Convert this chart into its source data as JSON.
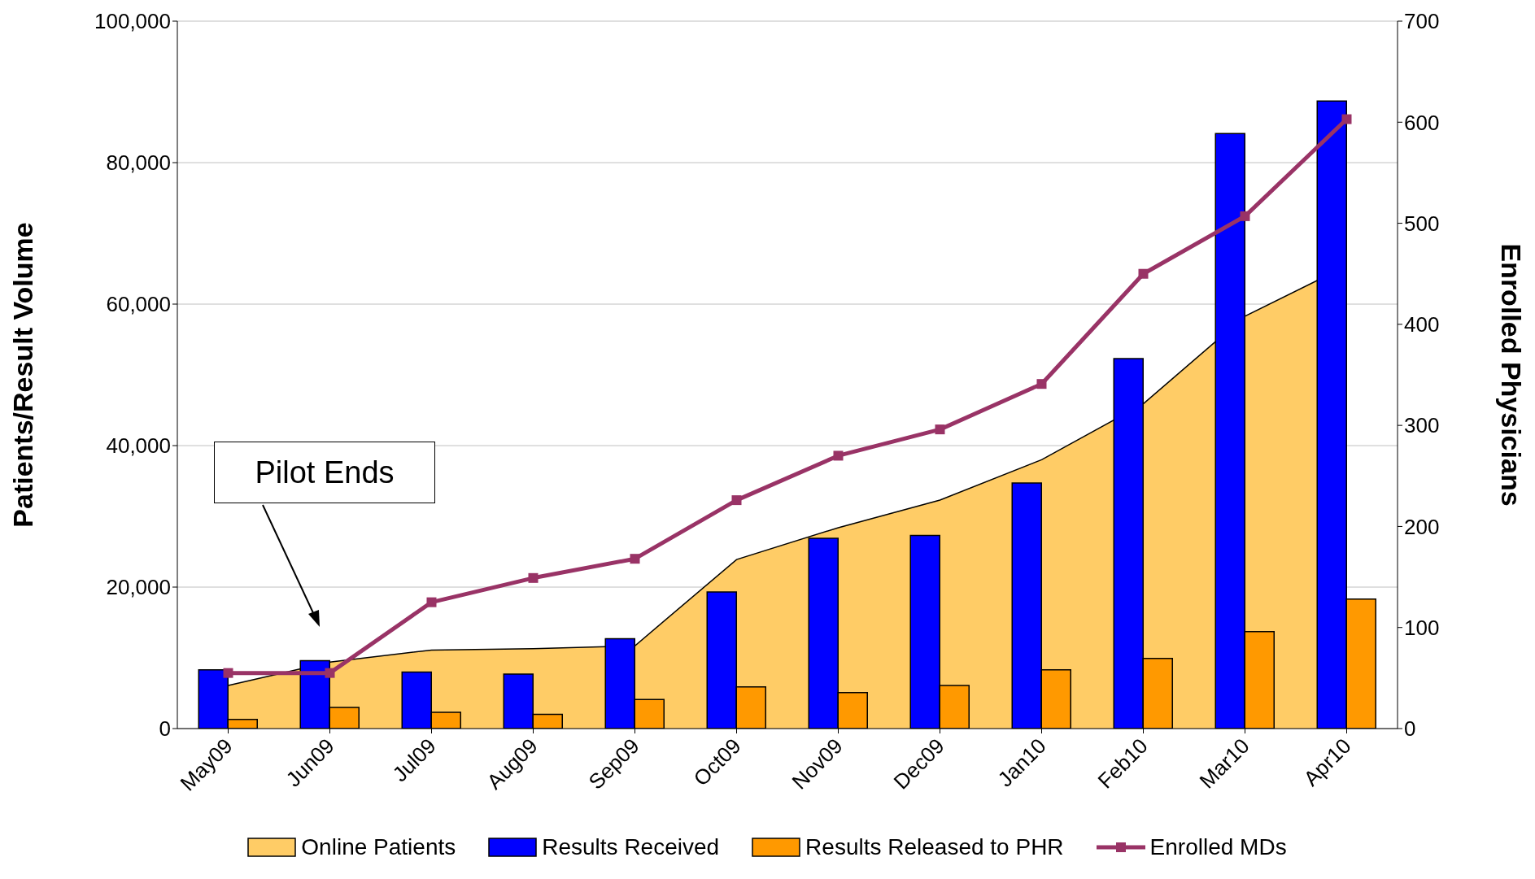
{
  "chart_data": {
    "type": "bar",
    "categories": [
      "May09",
      "Jun09",
      "Jul09",
      "Aug09",
      "Sep09",
      "Oct09",
      "Nov09",
      "Dec09",
      "Jan10",
      "Feb10",
      "Mar10",
      "Apr10"
    ],
    "series": [
      {
        "name": "Online Patients",
        "type": "area",
        "color": "#ffcc66",
        "values": [
          6100,
          9400,
          11100,
          11300,
          11700,
          23900,
          28400,
          32300,
          38000,
          45900,
          58300,
          65400
        ]
      },
      {
        "name": "Results Received",
        "color": "#0000ff",
        "values": [
          8300,
          9600,
          8000,
          7700,
          12700,
          19300,
          26900,
          27300,
          34700,
          52300,
          84100,
          88700
        ]
      },
      {
        "name": "Results Released to PHR",
        "color": "#ff9900",
        "values": [
          1300,
          3000,
          2300,
          2000,
          4100,
          5900,
          5100,
          6100,
          8300,
          9900,
          13700,
          18300
        ]
      },
      {
        "name": "Enrolled MDs",
        "type": "line",
        "axis": "y2",
        "color": "#993366",
        "marker": "square",
        "values": [
          55,
          55,
          125,
          149,
          168,
          226,
          270,
          296,
          341,
          450,
          507,
          603
        ]
      }
    ],
    "ylabel": "Patients/Result Volume",
    "y2label": "Enrolled Physicians",
    "ylim": [
      0,
      100000
    ],
    "yticks": [
      {
        "value": 0,
        "label": "0"
      },
      {
        "value": 20000,
        "label": "20,000"
      },
      {
        "value": 40000,
        "label": "40,000"
      },
      {
        "value": 60000,
        "label": "60,000"
      },
      {
        "value": 80000,
        "label": "80,000"
      },
      {
        "value": 100000,
        "label": "100,000"
      }
    ],
    "y2lim": [
      0,
      700
    ],
    "y2ticks": [
      0,
      100,
      200,
      300,
      400,
      500,
      600,
      700
    ],
    "grid": "y",
    "legend": "bottom",
    "annotations": [
      "Pilot Ends"
    ]
  }
}
